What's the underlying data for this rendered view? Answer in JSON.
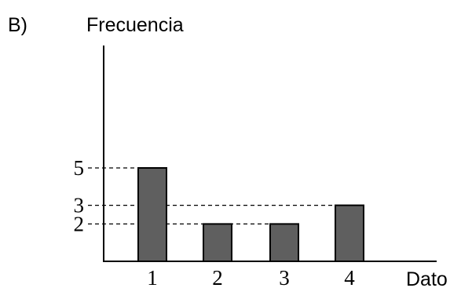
{
  "option_label": "B)",
  "chart_data": {
    "type": "bar",
    "categories": [
      "1",
      "2",
      "3",
      "4"
    ],
    "values": [
      5,
      2,
      2,
      3
    ],
    "ylabel": "Frecuencia",
    "xlabel": "Dato",
    "y_tick_labels": [
      "2",
      "3",
      "5"
    ],
    "ylim": [
      0,
      10
    ],
    "grid": false,
    "reference_lines": [
      5,
      3,
      2
    ],
    "bar_color": "#5f5f5f",
    "bar_stroke": "#000000"
  }
}
